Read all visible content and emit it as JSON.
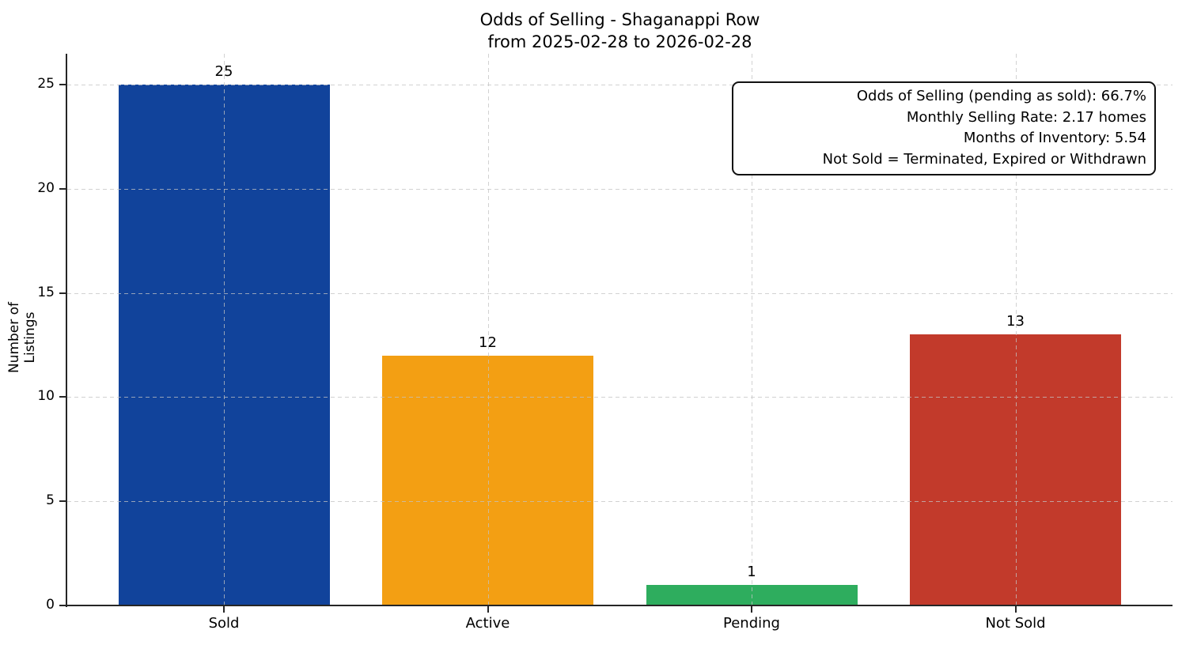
{
  "chart_data": {
    "type": "bar",
    "title": "Odds of Selling - Shaganappi Row",
    "subtitle": "from 2025-02-28 to 2026-02-28",
    "categories": [
      "Sold",
      "Active",
      "Pending",
      "Not Sold"
    ],
    "values": [
      25,
      12,
      1,
      13
    ],
    "bar_colors": [
      "#11439B",
      "#F39F13",
      "#2EAD5E",
      "#C23A2B"
    ],
    "value_labels": [
      "25",
      "12",
      "1",
      "13"
    ],
    "xlabel": "",
    "ylabel": "Number of Listings",
    "ylim": [
      0,
      26.5
    ],
    "yticks": [
      0,
      5,
      10,
      15,
      20,
      25
    ],
    "grid": "dashed, light gray, horizontal and vertical",
    "legend": "none",
    "annotation_box": {
      "position": "top-right",
      "align": "right",
      "lines": [
        "Odds of Selling (pending as sold): 66.7%",
        "Monthly Selling Rate: 2.17 homes",
        "Months of Inventory: 5.54",
        "Not Sold = Terminated, Expired or Withdrawn"
      ]
    }
  }
}
